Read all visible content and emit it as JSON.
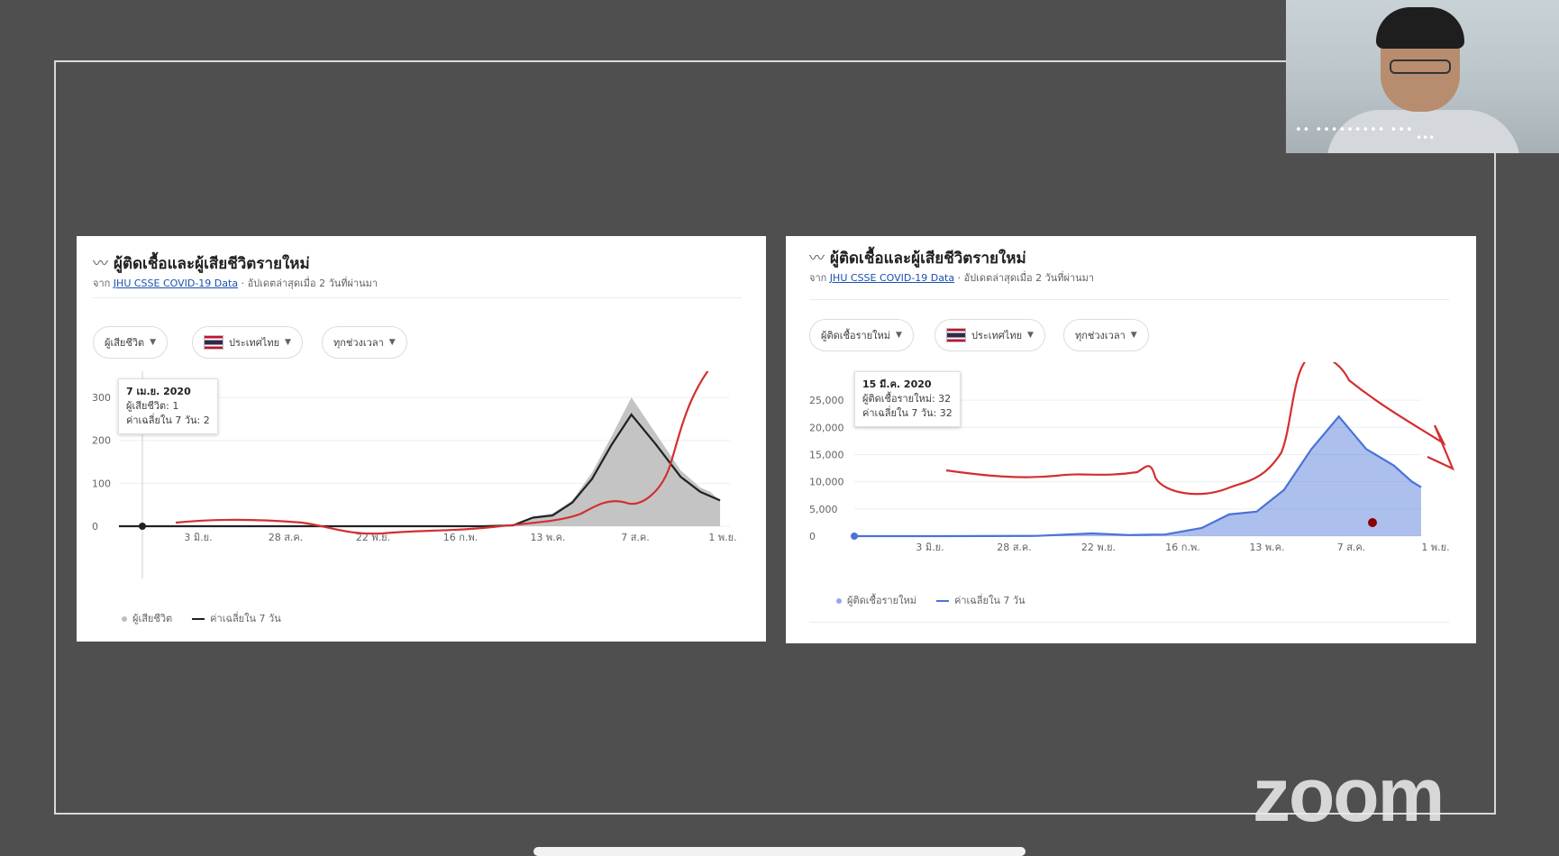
{
  "camera": {
    "participant_name": "•• ••••••••• •••",
    "more": "•••"
  },
  "charts": [
    {
      "title": "ผู้ติดเชื้อและผู้เสียชีวิตรายใหม่",
      "source_prefix": "จาก",
      "source_link": "JHU CSSE COVID-19 Data",
      "source_suffix": "· อัปเดตล่าสุดเมื่อ 2 วันที่ผ่านมา",
      "chips": {
        "metric": "ผู้เสียชีวิต",
        "country": "ประเทศไทย",
        "range": "ทุกช่วงเวลา"
      },
      "tooltip": {
        "date": "7 เม.ย. 2020",
        "line1": "ผู้เสียชีวิต: 1",
        "line2": "ค่าเฉลี่ยใน 7 วัน: 2"
      },
      "legend": {
        "bars": "ผู้เสียชีวิต",
        "avg": "ค่าเฉลี่ยใน 7 วัน"
      }
    },
    {
      "title": "ผู้ติดเชื้อและผู้เสียชีวิตรายใหม่",
      "source_prefix": "จาก",
      "source_link": "JHU CSSE COVID-19 Data",
      "source_suffix": "· อัปเดตล่าสุดเมื่อ 2 วันที่ผ่านมา",
      "chips": {
        "metric": "ผู้ติดเชื้อรายใหม่",
        "country": "ประเทศไทย",
        "range": "ทุกช่วงเวลา"
      },
      "tooltip": {
        "date": "15 มี.ค. 2020",
        "line1": "ผู้ติดเชื้อรายใหม่: 32",
        "line2": "ค่าเฉลี่ยใน 7 วัน: 32"
      },
      "legend": {
        "bars": "ผู้ติดเชื้อรายใหม่",
        "avg": "ค่าเฉลี่ยใน 7 วัน"
      }
    }
  ],
  "chart_data": [
    {
      "type": "area",
      "title": "ผู้ติดเชื้อและผู้เสียชีวิตรายใหม่",
      "x_tick_labels": [
        "3 มิ.ย.",
        "28 ส.ค.",
        "22 พ.ย.",
        "16 ก.พ.",
        "13 พ.ค.",
        "7 ส.ค.",
        "1 พ.ย."
      ],
      "y_ticks": [
        0,
        100,
        200,
        300
      ],
      "ylim": [
        0,
        340
      ],
      "series": [
        {
          "name": "ค่าเฉลี่ยใน 7 วัน",
          "color": "#202124",
          "x": [
            0,
            60,
            120,
            180,
            240,
            300,
            330,
            370,
            400,
            420,
            440,
            460,
            480,
            500,
            520,
            545,
            570,
            590,
            600,
            610
          ],
          "y": [
            0,
            0,
            0,
            0,
            0,
            0,
            0,
            0,
            2,
            20,
            25,
            55,
            110,
            190,
            260,
            190,
            115,
            80,
            70,
            60
          ]
        },
        {
          "name": "ผู้เสียชีวิต",
          "color": "#bdbdbd",
          "x": [
            0,
            60,
            120,
            180,
            240,
            300,
            330,
            370,
            400,
            420,
            440,
            460,
            480,
            500,
            520,
            545,
            570,
            590,
            600,
            610
          ],
          "y": [
            0,
            0,
            0,
            0,
            0,
            0,
            0,
            0,
            3,
            22,
            30,
            60,
            125,
            210,
            300,
            215,
            130,
            90,
            80,
            60
          ]
        }
      ],
      "annotation": {
        "color": "#d32f2f",
        "type": "hand-drawn line"
      }
    },
    {
      "type": "area",
      "title": "ผู้ติดเชื้อและผู้เสียชีวิตรายใหม่",
      "x_tick_labels": [
        "3 มิ.ย.",
        "28 ส.ค.",
        "22 พ.ย.",
        "16 ก.พ.",
        "13 พ.ค.",
        "7 ส.ค.",
        "1 พ.ย."
      ],
      "y_ticks": [
        0,
        5000,
        10000,
        15000,
        20000,
        25000
      ],
      "y_tick_labels": [
        "0",
        "5,000",
        "10,000",
        "15,000",
        "20,000",
        "25,000"
      ],
      "ylim": [
        0,
        27000
      ],
      "series": [
        {
          "name": "ผู้ติดเชื้อรายใหม่",
          "color": "#4a72d8",
          "x": [
            0,
            100,
            200,
            260,
            300,
            340,
            380,
            410,
            440,
            470,
            500,
            530,
            560,
            590,
            610,
            620
          ],
          "y": [
            0,
            0,
            50,
            500,
            200,
            300,
            1500,
            4000,
            4500,
            8500,
            16000,
            22000,
            16000,
            13000,
            10000,
            9000
          ]
        }
      ],
      "annotation": {
        "color": "#d32f2f",
        "type": "hand-drawn line"
      }
    }
  ],
  "watermark": "zoom",
  "colors": {
    "background": "#4f4f4f",
    "annotation": "#d32f2f",
    "avg_line": "#202124",
    "bars": "#bdbdbd",
    "cases_area": "#4a72d8"
  }
}
